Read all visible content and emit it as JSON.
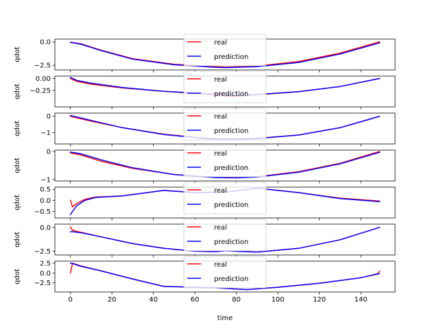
{
  "chart_data": {
    "type": "line",
    "xlabel": "time",
    "xlim": [
      -7.5,
      156.5
    ],
    "xticks": [
      0,
      20,
      40,
      60,
      80,
      100,
      120,
      140
    ],
    "legend": {
      "placement": "top-center",
      "entries": [
        "real",
        "prediction"
      ]
    },
    "colors": {
      "real": "#ff0000",
      "prediction": "#0000ff"
    },
    "subplots": [
      {
        "ylabel": "qdot",
        "ylim": [
          -3.0,
          0.3
        ],
        "yticks": [
          0.0,
          -2.5
        ],
        "ytick_labels": [
          "0.0",
          "−2.5"
        ],
        "series": [
          {
            "name": "real",
            "x": [
              0,
              5,
              15,
              30,
              50,
              70,
              75,
              90,
              110,
              130,
              149
            ],
            "y": [
              -0.05,
              -0.2,
              -0.9,
              -1.8,
              -2.4,
              -2.65,
              -2.7,
              -2.6,
              -2.1,
              -1.2,
              0.0
            ]
          },
          {
            "name": "prediction",
            "x": [
              0,
              5,
              15,
              30,
              50,
              70,
              75,
              90,
              110,
              130,
              149
            ],
            "y": [
              -0.05,
              -0.25,
              -0.95,
              -1.85,
              -2.45,
              -2.72,
              -2.75,
              -2.65,
              -2.2,
              -1.3,
              -0.1
            ]
          }
        ]
      },
      {
        "ylabel": "qdot",
        "ylim": [
          -0.6,
          0.05
        ],
        "yticks": [
          0.0,
          -0.25
        ],
        "ytick_labels": [
          "0.00",
          "−0.25"
        ],
        "series": [
          {
            "name": "real",
            "x": [
              0,
              3,
              10,
              25,
              45,
              65,
              75,
              78,
              85,
              110,
              130,
              149
            ],
            "y": [
              0.0,
              -0.06,
              -0.12,
              -0.2,
              -0.27,
              -0.33,
              -0.37,
              -0.38,
              -0.36,
              -0.28,
              -0.17,
              0.0
            ]
          },
          {
            "name": "prediction",
            "x": [
              0,
              3,
              10,
              25,
              45,
              65,
              75,
              78,
              85,
              110,
              130,
              149
            ],
            "y": [
              0.02,
              -0.04,
              -0.1,
              -0.19,
              -0.27,
              -0.32,
              -0.34,
              -0.36,
              -0.35,
              -0.28,
              -0.17,
              0.0
            ]
          }
        ]
      },
      {
        "ylabel": "qdot",
        "ylim": [
          -1.7,
          0.2
        ],
        "yticks": [
          0,
          -1
        ],
        "ytick_labels": [
          "0",
          "−1"
        ],
        "series": [
          {
            "name": "real",
            "x": [
              0,
              10,
              25,
              45,
              65,
              75,
              90,
              110,
              130,
              149
            ],
            "y": [
              0.0,
              -0.3,
              -0.7,
              -1.1,
              -1.35,
              -1.4,
              -1.35,
              -1.15,
              -0.7,
              0.0
            ]
          },
          {
            "name": "prediction",
            "x": [
              0,
              10,
              25,
              45,
              65,
              75,
              90,
              110,
              130,
              149
            ],
            "y": [
              0.05,
              -0.25,
              -0.7,
              -1.12,
              -1.37,
              -1.42,
              -1.37,
              -1.15,
              -0.7,
              0.0
            ]
          }
        ]
      },
      {
        "ylabel": "qdot",
        "ylim": [
          -1.05,
          0.05
        ],
        "yticks": [
          0,
          -1
        ],
        "ytick_labels": [
          "0",
          "−1"
        ],
        "series": [
          {
            "name": "real",
            "x": [
              0,
              5,
              15,
              30,
              50,
              70,
              80,
              90,
              110,
              130,
              149
            ],
            "y": [
              -0.05,
              -0.12,
              -0.35,
              -0.6,
              -0.82,
              -0.92,
              -0.93,
              -0.9,
              -0.72,
              -0.42,
              0.0
            ]
          },
          {
            "name": "prediction",
            "x": [
              0,
              5,
              15,
              30,
              50,
              70,
              80,
              90,
              110,
              130,
              149
            ],
            "y": [
              -0.02,
              -0.08,
              -0.3,
              -0.58,
              -0.82,
              -0.93,
              -0.94,
              -0.91,
              -0.74,
              -0.44,
              -0.03
            ]
          }
        ]
      },
      {
        "ylabel": "qdot",
        "ylim": [
          -0.8,
          0.6
        ],
        "yticks": [
          0.5,
          0.0,
          -0.5
        ],
        "ytick_labels": [
          "0.5",
          "0.0",
          "−0.5"
        ],
        "series": [
          {
            "name": "real",
            "x": [
              0,
              1,
              3,
              7,
              12,
              25,
              45,
              60,
              75,
              90,
              110,
              130,
              149
            ],
            "y": [
              0.0,
              -0.3,
              -0.15,
              0.05,
              0.15,
              0.2,
              0.45,
              0.35,
              0.38,
              0.55,
              0.35,
              0.1,
              -0.03
            ]
          },
          {
            "name": "prediction",
            "x": [
              0,
              1,
              3,
              7,
              12,
              25,
              45,
              60,
              75,
              90,
              110,
              130,
              149
            ],
            "y": [
              -0.65,
              -0.5,
              -0.25,
              0.0,
              0.13,
              0.2,
              0.45,
              0.35,
              0.38,
              0.55,
              0.35,
              0.08,
              -0.06
            ]
          }
        ]
      },
      {
        "ylabel": "qdot",
        "ylim": [
          -2.9,
          0.35
        ],
        "yticks": [
          0.0,
          -2.5
        ],
        "ytick_labels": [
          "0.0",
          "−2.5"
        ],
        "series": [
          {
            "name": "real",
            "x": [
              0,
              1,
              5,
              15,
              30,
              45,
              60,
              70,
              75,
              80,
              90,
              110,
              130,
              149
            ],
            "y": [
              0.05,
              -0.3,
              -0.5,
              -1.0,
              -1.7,
              -2.2,
              -2.5,
              -2.55,
              -2.4,
              -2.5,
              -2.6,
              -2.2,
              -1.3,
              0.0
            ]
          },
          {
            "name": "prediction",
            "x": [
              0,
              1,
              5,
              15,
              30,
              45,
              60,
              70,
              75,
              80,
              90,
              110,
              130,
              149
            ],
            "y": [
              -0.45,
              -0.45,
              -0.55,
              -1.0,
              -1.7,
              -2.2,
              -2.5,
              -2.55,
              -2.45,
              -2.52,
              -2.6,
              -2.2,
              -1.3,
              0.0
            ]
          }
        ]
      },
      {
        "ylabel": "qdot",
        "ylim": [
          -4.8,
          3.0
        ],
        "yticks": [
          2.5,
          0.0,
          -2.5
        ],
        "ytick_labels": [
          "2.5",
          "0.0",
          "−2.5"
        ],
        "series": [
          {
            "name": "real",
            "x": [
              0,
              1,
              5,
              15,
              30,
              45,
              60,
              70,
              75,
              85,
              100,
              120,
              140,
              148,
              149
            ],
            "y": [
              0.0,
              2.5,
              1.8,
              0.5,
              -1.5,
              -3.4,
              -3.6,
              -3.7,
              -3.9,
              -4.2,
              -3.6,
              -2.6,
              -1.2,
              -0.3,
              0.5
            ]
          },
          {
            "name": "prediction",
            "x": [
              0,
              1,
              5,
              15,
              30,
              45,
              60,
              70,
              75,
              85,
              100,
              120,
              140,
              148,
              149
            ],
            "y": [
              2.5,
              2.4,
              1.7,
              0.5,
              -1.5,
              -3.4,
              -3.6,
              -3.7,
              -3.9,
              -4.2,
              -3.6,
              -2.6,
              -1.2,
              -0.2,
              -0.2
            ]
          }
        ]
      }
    ]
  }
}
